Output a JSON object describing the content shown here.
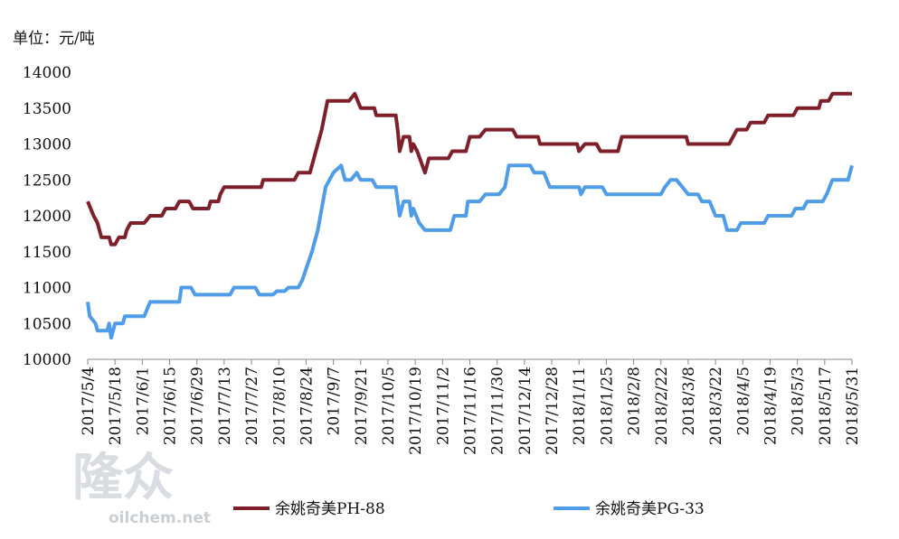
{
  "chart_data": {
    "type": "line",
    "y_label": "单位：元/吨",
    "watermark": {
      "text": "隆众",
      "url": "oilchem.net"
    },
    "xlim": [
      "2017/5/4",
      "2018/5/31"
    ],
    "xticks": [
      "2017/5/4",
      "2017/5/18",
      "2017/6/1",
      "2017/6/15",
      "2017/6/29",
      "2017/7/13",
      "2017/7/27",
      "2017/8/10",
      "2017/8/24",
      "2017/9/7",
      "2017/9/21",
      "2017/10/5",
      "2017/10/19",
      "2017/11/2",
      "2017/11/16",
      "2017/11/30",
      "2017/12/14",
      "2017/12/28",
      "2018/1/11",
      "2018/1/25",
      "2018/2/8",
      "2018/2/22",
      "2018/3/8",
      "2018/3/22",
      "2018/4/5",
      "2018/4/19",
      "2018/5/3",
      "2018/5/17",
      "2018/5/31"
    ],
    "ylim": [
      10000,
      14000
    ],
    "yticks": [
      10000,
      10500,
      11000,
      11500,
      12000,
      12500,
      13000,
      13500,
      14000
    ],
    "grid": false,
    "legend": "bottom",
    "series": [
      {
        "name": "余姚奇美PH-88",
        "color": "#7f1f2a",
        "x": [
          "2017/5/4",
          "2017/5/7",
          "2017/5/9",
          "2017/5/11",
          "2017/5/15",
          "2017/5/16",
          "2017/5/18",
          "2017/5/20",
          "2017/5/23",
          "2017/5/24",
          "2017/5/26",
          "2017/6/2",
          "2017/6/5",
          "2017/6/11",
          "2017/6/13",
          "2017/6/18",
          "2017/6/20",
          "2017/6/25",
          "2017/6/27",
          "2017/7/5",
          "2017/7/6",
          "2017/7/10",
          "2017/7/11",
          "2017/7/13",
          "2017/8/1",
          "2017/8/2",
          "2017/8/18",
          "2017/8/20",
          "2017/8/26",
          "2017/8/29",
          "2017/9/1",
          "2017/9/4",
          "2017/9/15",
          "2017/9/18",
          "2017/9/21",
          "2017/9/28",
          "2017/9/29",
          "2017/10/9",
          "2017/10/10",
          "2017/10/11",
          "2017/10/13",
          "2017/10/16",
          "2017/10/17",
          "2017/10/18",
          "2017/10/20",
          "2017/10/24",
          "2017/10/26",
          "2017/11/5",
          "2017/11/7",
          "2017/11/14",
          "2017/11/16",
          "2017/11/21",
          "2017/11/24",
          "2017/12/8",
          "2017/12/10",
          "2017/12/21",
          "2017/12/22",
          "2018/1/10",
          "2018/1/11",
          "2018/1/14",
          "2018/1/20",
          "2018/1/22",
          "2018/1/31",
          "2018/2/2",
          "2018/3/7",
          "2018/3/8",
          "2018/3/29",
          "2018/4/2",
          "2018/4/7",
          "2018/4/9",
          "2018/4/16",
          "2018/4/18",
          "2018/5/1",
          "2018/5/3",
          "2018/5/14",
          "2018/5/15",
          "2018/5/19",
          "2018/5/21",
          "2018/5/31"
        ],
        "values": [
          12200,
          12000,
          11900,
          11700,
          11700,
          11600,
          11600,
          11700,
          11700,
          11800,
          11900,
          11900,
          12000,
          12000,
          12100,
          12100,
          12200,
          12200,
          12100,
          12100,
          12200,
          12200,
          12300,
          12400,
          12400,
          12500,
          12500,
          12600,
          12600,
          12900,
          13200,
          13600,
          13600,
          13700,
          13500,
          13500,
          13400,
          13400,
          13200,
          12900,
          13100,
          13100,
          12900,
          13000,
          12900,
          12600,
          12800,
          12800,
          12900,
          12900,
          13100,
          13100,
          13200,
          13200,
          13100,
          13100,
          13000,
          13000,
          12900,
          13000,
          13000,
          12900,
          12900,
          13100,
          13100,
          13000,
          13000,
          13200,
          13200,
          13300,
          13300,
          13400,
          13400,
          13500,
          13500,
          13600,
          13600,
          13700,
          13700
        ]
      },
      {
        "name": "余姚奇美PG-33",
        "color": "#4f9ce8",
        "x": [
          "2017/5/4",
          "2017/5/5",
          "2017/5/8",
          "2017/5/9",
          "2017/5/14",
          "2017/5/15",
          "2017/5/16",
          "2017/5/18",
          "2017/5/22",
          "2017/5/23",
          "2017/6/2",
          "2017/6/5",
          "2017/6/20",
          "2017/6/21",
          "2017/6/26",
          "2017/6/28",
          "2017/7/16",
          "2017/7/18",
          "2017/7/29",
          "2017/7/31",
          "2017/8/7",
          "2017/8/9",
          "2017/8/13",
          "2017/8/15",
          "2017/8/20",
          "2017/8/22",
          "2017/8/27",
          "2017/8/30",
          "2017/9/3",
          "2017/9/7",
          "2017/9/11",
          "2017/9/13",
          "2017/9/16",
          "2017/9/19",
          "2017/9/21",
          "2017/9/27",
          "2017/9/29",
          "2017/10/9",
          "2017/10/10",
          "2017/10/11",
          "2017/10/13",
          "2017/10/16",
          "2017/10/17",
          "2017/10/18",
          "2017/10/21",
          "2017/10/24",
          "2017/11/6",
          "2017/11/8",
          "2017/11/14",
          "2017/11/15",
          "2017/11/21",
          "2017/11/24",
          "2017/12/1",
          "2017/12/4",
          "2017/12/6",
          "2017/12/17",
          "2017/12/19",
          "2017/12/24",
          "2017/12/27",
          "2018/1/11",
          "2018/1/12",
          "2018/1/14",
          "2018/1/23",
          "2018/1/25",
          "2018/2/22",
          "2018/2/24",
          "2018/2/27",
          "2018/3/2",
          "2018/3/5",
          "2018/3/8",
          "2018/3/13",
          "2018/3/15",
          "2018/3/19",
          "2018/3/22",
          "2018/3/26",
          "2018/3/28",
          "2018/4/2",
          "2018/4/4",
          "2018/4/16",
          "2018/4/18",
          "2018/4/30",
          "2018/5/2",
          "2018/5/6",
          "2018/5/8",
          "2018/5/16",
          "2018/5/18",
          "2018/5/21",
          "2018/5/29",
          "2018/5/31"
        ],
        "values": [
          10800,
          10600,
          10500,
          10400,
          10400,
          10500,
          10300,
          10500,
          10500,
          10600,
          10600,
          10800,
          10800,
          11000,
          11000,
          10900,
          10900,
          11000,
          11000,
          10900,
          10900,
          10950,
          10950,
          11000,
          11000,
          11100,
          11500,
          11800,
          12400,
          12600,
          12700,
          12500,
          12500,
          12600,
          12500,
          12500,
          12400,
          12400,
          12200,
          12000,
          12200,
          12200,
          12000,
          12100,
          11900,
          11800,
          11800,
          12000,
          12000,
          12200,
          12200,
          12300,
          12300,
          12400,
          12700,
          12700,
          12600,
          12600,
          12400,
          12400,
          12300,
          12400,
          12400,
          12300,
          12300,
          12400,
          12500,
          12500,
          12400,
          12300,
          12300,
          12200,
          12200,
          12000,
          12000,
          11800,
          11800,
          11900,
          11900,
          12000,
          12000,
          12100,
          12100,
          12200,
          12200,
          12300,
          12500,
          12500,
          12700
        ]
      }
    ]
  }
}
